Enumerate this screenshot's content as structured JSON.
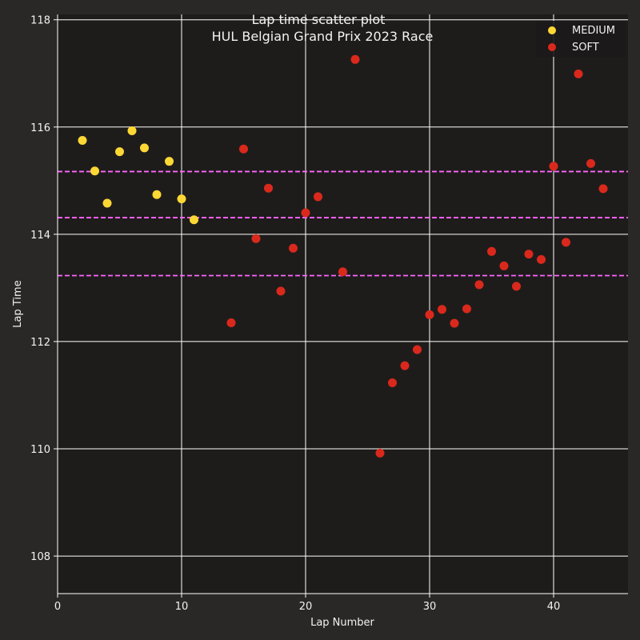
{
  "chart_data": {
    "type": "scatter",
    "title": "Lap time scatter plot",
    "subtitle": "HUL Belgian Grand Prix 2023 Race",
    "xlabel": "Lap Number",
    "ylabel": "Lap Time",
    "xlim": [
      0,
      46
    ],
    "ylim": [
      107.3,
      118.1
    ],
    "xticks": [
      0,
      10,
      20,
      30,
      40
    ],
    "yticks": [
      108,
      110,
      112,
      114,
      116,
      118
    ],
    "grid": true,
    "legend_position": "top-right",
    "series": [
      {
        "name": "MEDIUM",
        "color": "#fdd835",
        "points": [
          [
            2,
            115.75
          ],
          [
            3,
            115.18
          ],
          [
            4,
            114.58
          ],
          [
            5,
            115.54
          ],
          [
            6,
            115.93
          ],
          [
            7,
            115.61
          ],
          [
            8,
            114.74
          ],
          [
            9,
            115.36
          ],
          [
            10,
            114.66
          ],
          [
            11,
            114.27
          ]
        ]
      },
      {
        "name": "SOFT",
        "color": "#da291c",
        "points": [
          [
            14,
            112.35
          ],
          [
            15,
            115.59
          ],
          [
            16,
            113.92
          ],
          [
            17,
            114.86
          ],
          [
            18,
            112.94
          ],
          [
            19,
            113.74
          ],
          [
            20,
            114.4
          ],
          [
            21,
            114.7
          ],
          [
            23,
            113.3
          ],
          [
            24,
            117.26
          ],
          [
            26,
            109.92
          ],
          [
            27,
            111.23
          ],
          [
            28,
            111.55
          ],
          [
            29,
            111.85
          ],
          [
            30,
            112.5
          ],
          [
            31,
            112.6
          ],
          [
            32,
            112.34
          ],
          [
            33,
            112.61
          ],
          [
            34,
            113.06
          ],
          [
            35,
            113.68
          ],
          [
            36,
            113.41
          ],
          [
            37,
            113.03
          ],
          [
            38,
            113.63
          ],
          [
            39,
            113.53
          ],
          [
            40,
            115.27
          ],
          [
            41,
            113.85
          ],
          [
            42,
            116.99
          ],
          [
            43,
            115.32
          ],
          [
            44,
            114.85
          ]
        ]
      }
    ],
    "reference_lines": [
      {
        "y": 115.17,
        "color": "#ff66ff",
        "style": "dashed"
      },
      {
        "y": 114.31,
        "color": "#ff66ff",
        "style": "dashed"
      },
      {
        "y": 113.23,
        "color": "#ff66ff",
        "style": "dashed"
      }
    ]
  }
}
